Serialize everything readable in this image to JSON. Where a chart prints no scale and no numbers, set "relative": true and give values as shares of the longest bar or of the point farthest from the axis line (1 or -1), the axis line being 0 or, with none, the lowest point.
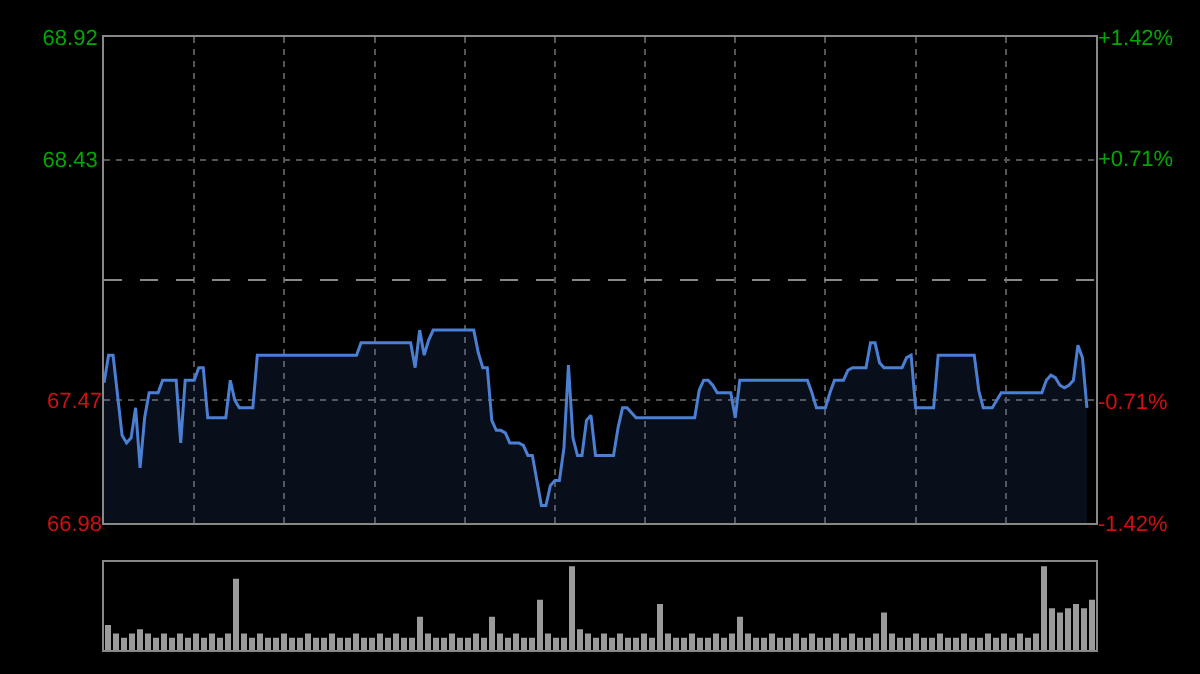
{
  "chart_data": [
    {
      "type": "area",
      "categories": [
        null,
        null,
        null,
        null,
        null,
        null,
        null,
        null,
        null,
        null,
        null,
        null,
        null,
        null,
        null,
        null,
        null,
        null,
        null,
        null,
        null,
        null,
        null,
        null,
        null,
        null,
        null,
        null,
        null,
        null,
        null,
        null,
        null,
        null,
        null,
        null,
        null,
        null,
        null,
        null,
        null,
        null,
        null,
        null,
        null,
        null,
        null,
        null,
        null,
        null,
        null,
        null,
        null,
        null,
        null,
        null,
        null,
        null,
        null,
        null,
        null,
        null,
        null,
        null,
        null,
        null,
        null,
        null,
        null,
        null,
        null,
        null,
        null,
        null,
        null,
        null,
        null,
        null,
        null,
        null,
        null,
        null,
        null,
        null,
        null,
        null,
        null,
        null,
        null,
        null,
        null,
        null,
        null,
        null,
        null,
        null,
        null,
        null,
        null,
        null,
        null,
        null,
        null,
        null,
        null,
        null,
        null,
        null,
        null,
        null,
        null,
        null,
        null,
        null,
        null,
        null,
        null,
        null,
        null,
        null,
        null,
        null,
        null,
        null,
        null,
        null,
        null,
        null,
        null,
        null,
        null,
        null,
        null,
        null,
        null,
        null,
        null,
        null,
        null,
        null,
        null,
        null,
        null,
        null,
        null,
        null,
        null,
        null,
        null,
        null,
        null,
        null,
        null,
        null,
        null,
        null,
        null,
        null,
        null,
        null,
        null,
        null,
        null,
        null,
        null,
        null,
        null,
        null,
        null,
        null,
        null,
        null,
        null,
        null,
        null,
        null,
        null,
        null,
        null,
        null,
        null,
        null,
        null,
        null,
        null,
        null,
        null,
        null,
        null,
        null,
        null,
        null,
        null,
        null,
        null,
        null,
        null,
        null,
        null,
        null,
        null,
        null,
        null,
        null,
        null,
        null,
        null,
        null,
        null,
        null,
        null,
        null,
        null,
        null,
        null,
        null,
        null,
        null,
        null,
        null,
        null
      ],
      "series": [
        {
          "color": "#4a7fd4",
          "values": [
            67.54,
            67.65,
            67.65,
            67.49,
            67.33,
            67.3,
            67.32,
            67.44,
            67.2,
            67.4,
            67.5,
            67.5,
            67.5,
            67.55,
            67.55,
            67.55,
            67.55,
            67.3,
            67.55,
            67.55,
            67.55,
            67.6,
            67.6,
            67.4,
            67.4,
            67.4,
            67.4,
            67.4,
            67.55,
            67.47,
            67.44,
            67.44,
            67.44,
            67.44,
            67.65,
            67.65,
            67.65,
            67.65,
            67.65,
            67.65,
            67.65,
            67.65,
            67.65,
            67.65,
            67.65,
            67.65,
            67.65,
            67.65,
            67.65,
            67.65,
            67.65,
            67.65,
            67.65,
            67.65,
            67.65,
            67.65,
            67.65,
            67.7,
            67.7,
            67.7,
            67.7,
            67.7,
            67.7,
            67.7,
            67.7,
            67.7,
            67.7,
            67.7,
            67.7,
            67.6,
            67.75,
            67.65,
            67.71,
            67.75,
            67.75,
            67.75,
            67.75,
            67.75,
            67.75,
            67.75,
            67.75,
            67.75,
            67.75,
            67.66,
            67.6,
            67.6,
            67.39,
            67.35,
            67.35,
            67.34,
            67.3,
            67.3,
            67.3,
            67.29,
            67.25,
            67.25,
            67.15,
            67.05,
            67.05,
            67.13,
            67.15,
            67.15,
            67.28,
            67.61,
            67.32,
            67.25,
            67.25,
            67.39,
            67.41,
            67.25,
            67.25,
            67.25,
            67.25,
            67.25,
            67.36,
            67.44,
            67.44,
            67.42,
            67.4,
            67.4,
            67.4,
            67.4,
            67.4,
            67.4,
            67.4,
            67.4,
            67.4,
            67.4,
            67.4,
            67.4,
            67.4,
            67.4,
            67.51,
            67.55,
            67.55,
            67.53,
            67.5,
            67.5,
            67.5,
            67.5,
            67.4,
            67.55,
            67.55,
            67.55,
            67.55,
            67.55,
            67.55,
            67.55,
            67.55,
            67.55,
            67.55,
            67.55,
            67.55,
            67.55,
            67.55,
            67.55,
            67.55,
            67.5,
            67.44,
            67.44,
            67.44,
            67.5,
            67.55,
            67.55,
            67.55,
            67.59,
            67.6,
            67.6,
            67.6,
            67.6,
            67.7,
            67.7,
            67.62,
            67.6,
            67.6,
            67.6,
            67.6,
            67.6,
            67.64,
            67.65,
            67.44,
            67.44,
            67.44,
            67.44,
            67.44,
            67.65,
            67.65,
            67.65,
            67.65,
            67.65,
            67.65,
            67.65,
            67.65,
            67.65,
            67.51,
            67.44,
            67.44,
            67.44,
            67.47,
            67.5,
            67.5,
            67.5,
            67.5,
            67.5,
            67.5,
            67.5,
            67.5,
            67.5,
            67.5,
            67.55,
            67.57,
            67.56,
            67.53,
            67.52,
            67.53,
            67.55,
            67.69,
            67.64,
            67.44,
            null,
            null
          ]
        }
      ],
      "ylim": [
        66.98,
        68.92
      ],
      "yticks": [
        66.98,
        67.47,
        68.43,
        68.92
      ],
      "y2lim": [
        -1.42,
        1.42
      ],
      "y2ticks": [
        {
          "value": -1.42,
          "label": "-1.42%"
        },
        {
          "value": -0.71,
          "label": "-0.71%"
        },
        {
          "value": 0.71,
          "label": "+0.71%"
        },
        {
          "value": 1.42,
          "label": "+1.42%"
        }
      ],
      "ref_lines": [
        {
          "axis": "y",
          "value": 67.95,
          "line_style": "dashed",
          "color": "#888888"
        }
      ],
      "grid": true,
      "legend": false,
      "marker": "none",
      "line_style": "solid",
      "tick_labels": "y"
    },
    {
      "type": "bar",
      "relative": true,
      "categories": [
        null,
        null,
        null,
        null,
        null,
        null,
        null,
        null,
        null,
        null,
        null,
        null,
        null,
        null,
        null,
        null,
        null,
        null,
        null,
        null,
        null,
        null,
        null,
        null,
        null,
        null,
        null,
        null,
        null,
        null,
        null,
        null,
        null,
        null,
        null,
        null,
        null,
        null,
        null,
        null,
        null,
        null,
        null,
        null,
        null,
        null,
        null,
        null,
        null,
        null,
        null,
        null,
        null,
        null,
        null,
        null,
        null,
        null,
        null,
        null,
        null,
        null,
        null,
        null,
        null,
        null,
        null,
        null,
        null,
        null,
        null,
        null,
        null,
        null,
        null,
        null,
        null,
        null,
        null,
        null,
        null,
        null,
        null,
        null,
        null,
        null,
        null,
        null,
        null,
        null,
        null,
        null,
        null,
        null,
        null,
        null,
        null,
        null,
        null,
        null,
        null,
        null,
        null,
        null,
        null,
        null,
        null,
        null,
        null,
        null,
        null,
        null,
        null,
        null,
        null,
        null,
        null,
        null,
        null,
        null,
        null,
        null,
        null,
        null
      ],
      "values": [
        0.3,
        0.2,
        0.15,
        0.2,
        0.25,
        0.2,
        0.15,
        0.2,
        0.15,
        0.2,
        0.15,
        0.2,
        0.15,
        0.2,
        0.15,
        0.2,
        0.85,
        0.2,
        0.15,
        0.2,
        0.15,
        0.15,
        0.2,
        0.15,
        0.15,
        0.2,
        0.15,
        0.15,
        0.2,
        0.15,
        0.15,
        0.2,
        0.15,
        0.15,
        0.2,
        0.15,
        0.2,
        0.15,
        0.15,
        0.4,
        0.2,
        0.15,
        0.15,
        0.2,
        0.15,
        0.15,
        0.2,
        0.15,
        0.4,
        0.2,
        0.15,
        0.2,
        0.15,
        0.15,
        0.6,
        0.2,
        0.15,
        0.15,
        1.0,
        0.25,
        0.2,
        0.15,
        0.2,
        0.15,
        0.2,
        0.15,
        0.15,
        0.2,
        0.15,
        0.55,
        0.2,
        0.15,
        0.15,
        0.2,
        0.15,
        0.15,
        0.2,
        0.15,
        0.2,
        0.4,
        0.2,
        0.15,
        0.15,
        0.2,
        0.15,
        0.15,
        0.2,
        0.15,
        0.2,
        0.15,
        0.15,
        0.2,
        0.15,
        0.2,
        0.15,
        0.15,
        0.2,
        0.45,
        0.2,
        0.15,
        0.15,
        0.2,
        0.15,
        0.15,
        0.2,
        0.15,
        0.15,
        0.2,
        0.15,
        0.15,
        0.2,
        0.15,
        0.2,
        0.15,
        0.2,
        0.15,
        0.2,
        1.0,
        0.5,
        0.45,
        0.5,
        0.55,
        0.5,
        0.6
      ],
      "color": "#9a9a9a",
      "grid": false,
      "legend": false,
      "tick_labels": false
    }
  ]
}
